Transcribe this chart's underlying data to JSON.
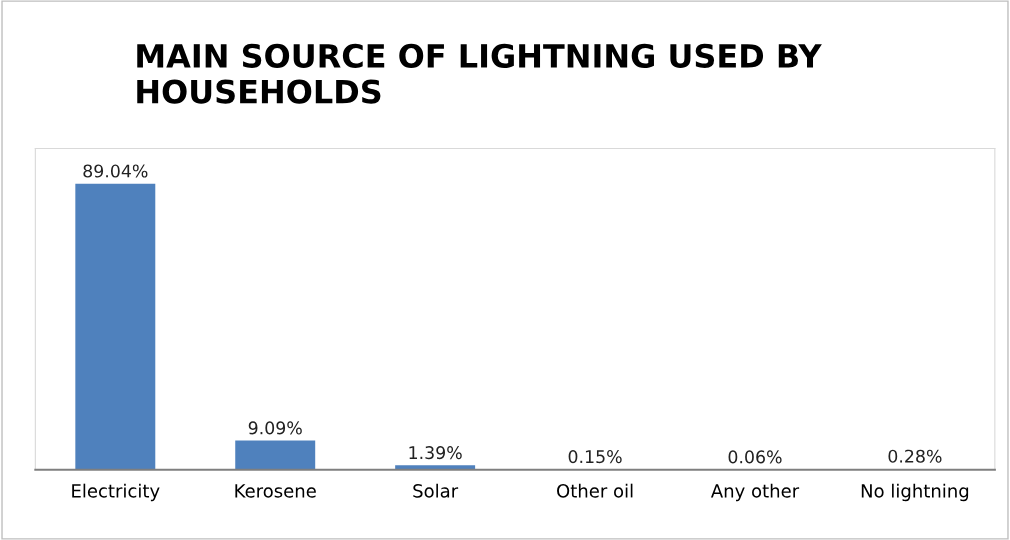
{
  "chart_data": {
    "type": "bar",
    "title": "MAIN SOURCE OF LIGHTNING USED BY HOUSEHOLDS",
    "categories": [
      "Electricity",
      "Kerosene",
      "Solar",
      "Other oil",
      "Any other",
      "No lightning"
    ],
    "values": [
      89.04,
      9.09,
      1.39,
      0.15,
      0.06,
      0.28
    ],
    "value_labels": [
      "89.04%",
      "9.09%",
      "1.39%",
      "0.15%",
      "0.06%",
      "0.28%"
    ],
    "color": "#4f81bd",
    "ylim": [
      0,
      100
    ],
    "grid": false,
    "legend": false,
    "tick_labels": "x"
  }
}
